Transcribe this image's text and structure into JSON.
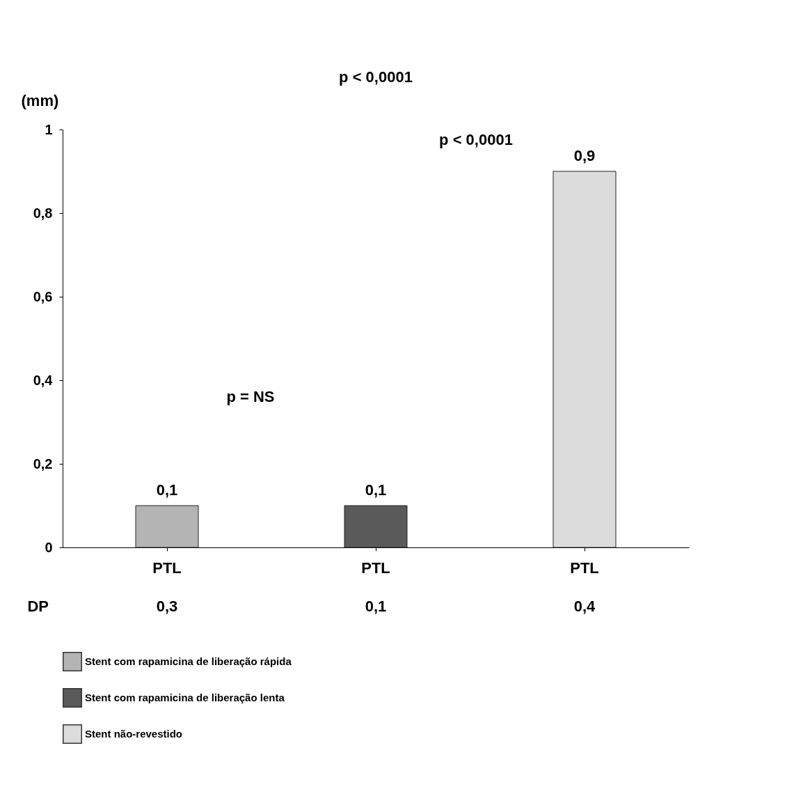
{
  "chart_data": {
    "type": "bar",
    "categories": [
      "PTL",
      "PTL",
      "PTL"
    ],
    "series": [
      {
        "name": "Stent com rapamicina de liberação rápida",
        "color": "#b4b4b4",
        "values": [
          0.1,
          null,
          null
        ],
        "value_labels": [
          "0,1",
          null,
          null
        ]
      },
      {
        "name": "Stent com rapamicina de liberação lenta",
        "color": "#5a5a5a",
        "values": [
          null,
          0.1,
          null
        ],
        "value_labels": [
          null,
          "0,1",
          null
        ]
      },
      {
        "name": "Stent não-revestido",
        "color": "#dcdcdc",
        "values": [
          null,
          null,
          0.9
        ],
        "value_labels": [
          null,
          null,
          "0,9"
        ]
      }
    ],
    "ylabel": "(mm)",
    "ylim": [
      0,
      1
    ],
    "yticks": [
      0,
      {
        "value": 0.2,
        "label": "0,2"
      },
      {
        "value": 0.4,
        "label": "0,4"
      },
      {
        "value": 0.6,
        "label": "0,6"
      },
      {
        "value": 0.8,
        "label": "0,8"
      },
      1
    ],
    "annotations": [
      "p < 0,0001",
      "p < 0,0001",
      "p = NS",
      "DP",
      "0,3",
      "0,1",
      "0,4"
    ],
    "grid": false,
    "legend": "bottom"
  }
}
